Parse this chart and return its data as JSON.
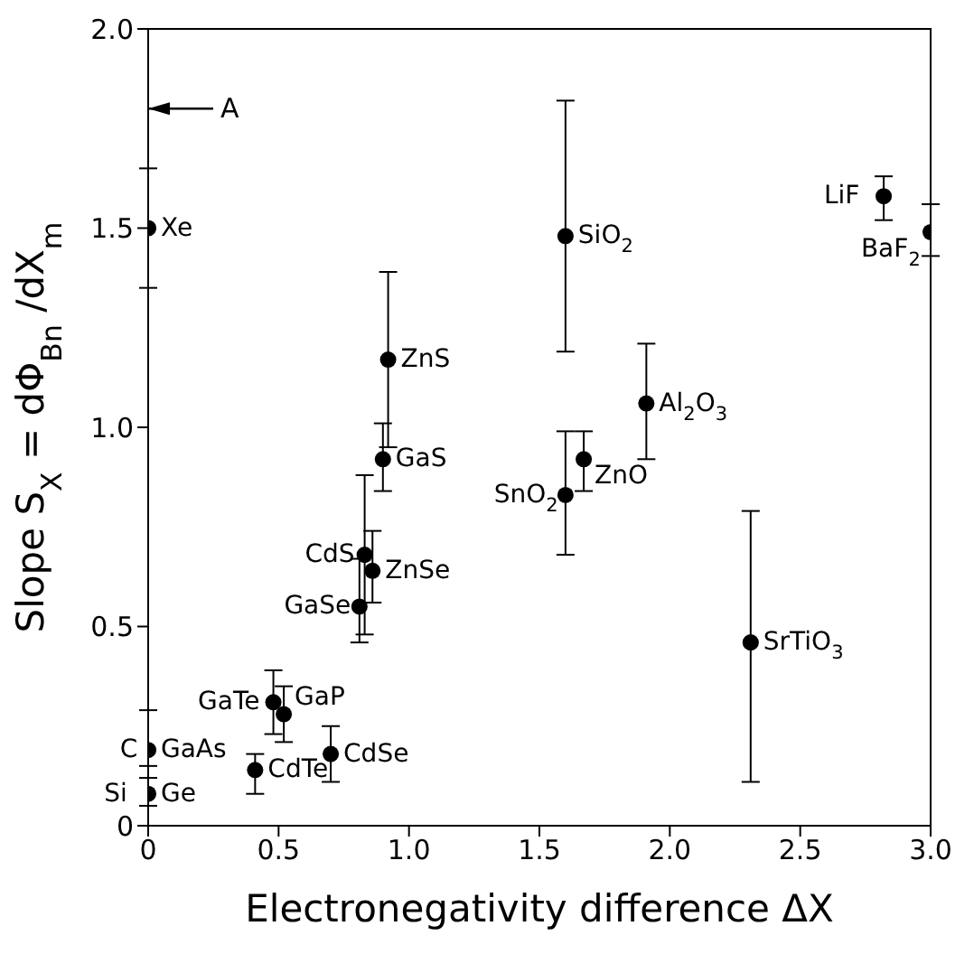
{
  "chart_data": {
    "type": "scatter",
    "xlabel": "Electronegativity difference ΔX",
    "ylabel": "Slope  S$_{X}$ = dΦ$_{Bn}$ /dX$_{m}$",
    "xlim": [
      0,
      3
    ],
    "ylim": [
      0,
      2
    ],
    "xticks": [
      0,
      {
        "value": 0.5,
        "label": "0.5"
      },
      {
        "value": 1,
        "label": "1.0"
      },
      {
        "value": 1.5,
        "label": "1.5"
      },
      {
        "value": 2,
        "label": "2.0"
      },
      {
        "value": 2.5,
        "label": "2.5"
      },
      {
        "value": 3,
        "label": "3.0"
      }
    ],
    "yticks": [
      0,
      {
        "value": 0.5,
        "label": "0.5"
      },
      {
        "value": 1,
        "label": "1.0"
      },
      {
        "value": 1.5,
        "label": "1.5"
      },
      {
        "value": 2,
        "label": "2.0"
      }
    ],
    "marker": "circle",
    "grid": false,
    "legend": false,
    "series": [
      {
        "color": "#000000",
        "x": [
          0,
          0,
          0,
          0.41,
          0.48,
          0.52,
          0.7,
          0.81,
          0.83,
          0.86,
          0.9,
          0.92,
          1.6,
          1.67,
          1.6,
          1.91,
          2.31,
          2.82,
          3.0
        ],
        "values": [
          1.5,
          0.19,
          0.08,
          0.14,
          0.31,
          0.28,
          0.18,
          0.55,
          0.68,
          0.64,
          0.92,
          1.17,
          0.83,
          0.92,
          1.48,
          1.06,
          0.46,
          1.58,
          1.49
        ],
        "errors": [
          [
            1.35,
            1.65
          ],
          [
            0.15,
            0.29
          ],
          [
            0.05,
            0.12
          ],
          [
            0.08,
            0.18
          ],
          [
            0.23,
            0.39
          ],
          [
            0.21,
            0.35
          ],
          [
            0.11,
            0.25
          ],
          [
            0.46,
            0.67
          ],
          [
            0.48,
            0.88
          ],
          [
            0.56,
            0.74
          ],
          [
            0.84,
            1.01
          ],
          [
            0.95,
            1.39
          ],
          [
            0.68,
            0.99
          ],
          [
            0.84,
            0.99
          ],
          [
            1.19,
            1.82
          ],
          [
            0.92,
            1.21
          ],
          [
            0.11,
            0.79
          ],
          [
            1.52,
            1.63
          ],
          [
            1.43,
            1.56
          ]
        ]
      }
    ],
    "ref_lines": [
      {
        "axis": "y",
        "value": 1.8,
        "label": "A"
      }
    ],
    "annotations": [
      {
        "text": "Xe",
        "x": 0,
        "y": 1.5
      },
      {
        "text": "C",
        "x": 0,
        "y": 0.19
      },
      {
        "text": "GaAs",
        "x": 0,
        "y": 0.19
      },
      {
        "text": "Si",
        "x": 0,
        "y": 0.08
      },
      {
        "text": "Ge",
        "x": 0,
        "y": 0.08
      },
      {
        "text": "CdTe",
        "x": 0.41,
        "y": 0.14
      },
      {
        "text": "GaTe",
        "x": 0.48,
        "y": 0.31
      },
      {
        "text": "GaP",
        "x": 0.52,
        "y": 0.28
      },
      {
        "text": "CdSe",
        "x": 0.7,
        "y": 0.18
      },
      {
        "text": "GaSe",
        "x": 0.81,
        "y": 0.55
      },
      {
        "text": "CdS",
        "x": 0.83,
        "y": 0.68
      },
      {
        "text": "ZnSe",
        "x": 0.86,
        "y": 0.64
      },
      {
        "text": "GaS",
        "x": 0.9,
        "y": 0.92
      },
      {
        "text": "ZnS",
        "x": 0.92,
        "y": 1.17
      },
      {
        "text": "SnO$_{2}$",
        "x": 1.6,
        "y": 0.83
      },
      {
        "text": "ZnO",
        "x": 1.67,
        "y": 0.92
      },
      {
        "text": "SiO$_{2}$",
        "x": 1.6,
        "y": 1.48
      },
      {
        "text": "Al$_{2}$O$_{3}$",
        "x": 1.91,
        "y": 1.06
      },
      {
        "text": "SrTiO$_{3}$",
        "x": 2.31,
        "y": 0.46
      },
      {
        "text": "LiF",
        "x": 2.82,
        "y": 1.58
      },
      {
        "text": "BaF$_{2}$",
        "x": 3.0,
        "y": 1.49
      }
    ]
  }
}
